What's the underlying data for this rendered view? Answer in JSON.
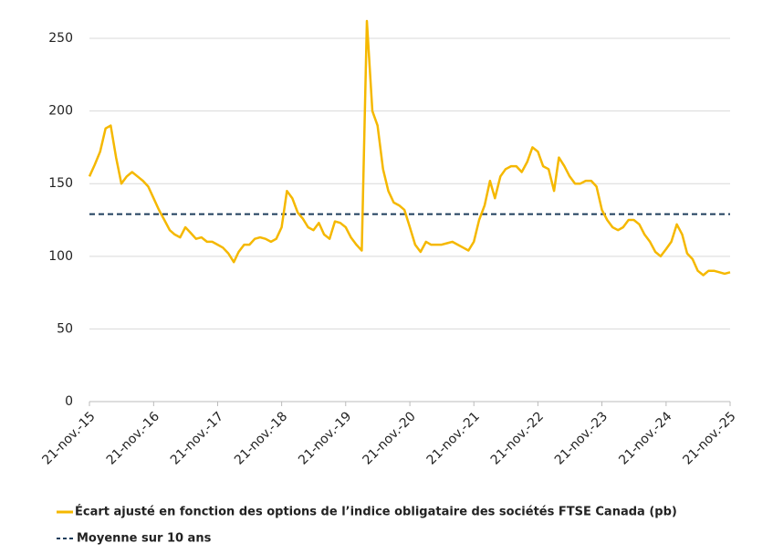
{
  "chart_data": {
    "type": "line",
    "x": [
      "2015-11-21",
      "2015-12-21",
      "2016-01-21",
      "2016-02-21",
      "2016-03-21",
      "2016-04-21",
      "2016-05-21",
      "2016-06-21",
      "2016-07-21",
      "2016-08-21",
      "2016-09-21",
      "2016-10-21",
      "2016-11-21",
      "2016-12-21",
      "2017-01-21",
      "2017-02-21",
      "2017-03-21",
      "2017-04-21",
      "2017-05-21",
      "2017-06-21",
      "2017-07-21",
      "2017-08-21",
      "2017-09-21",
      "2017-10-21",
      "2017-11-21",
      "2017-12-21",
      "2018-01-21",
      "2018-02-21",
      "2018-03-21",
      "2018-04-21",
      "2018-05-21",
      "2018-06-21",
      "2018-07-21",
      "2018-08-21",
      "2018-09-21",
      "2018-10-21",
      "2018-11-21",
      "2018-12-21",
      "2019-01-21",
      "2019-02-21",
      "2019-03-21",
      "2019-04-21",
      "2019-05-21",
      "2019-06-21",
      "2019-07-21",
      "2019-08-21",
      "2019-09-21",
      "2019-10-21",
      "2019-11-21",
      "2019-12-21",
      "2020-01-21",
      "2020-02-21",
      "2020-03-21",
      "2020-04-21",
      "2020-05-21",
      "2020-06-21",
      "2020-07-21",
      "2020-08-21",
      "2020-09-21",
      "2020-10-21",
      "2020-11-21",
      "2020-12-21",
      "2021-01-21",
      "2021-02-21",
      "2021-03-21",
      "2021-04-21",
      "2021-05-21",
      "2021-06-21",
      "2021-07-21",
      "2021-08-21",
      "2021-09-21",
      "2021-10-21",
      "2021-11-21",
      "2021-12-21",
      "2022-01-21",
      "2022-02-21",
      "2022-03-21",
      "2022-04-21",
      "2022-05-21",
      "2022-06-21",
      "2022-07-21",
      "2022-08-21",
      "2022-09-21",
      "2022-10-21",
      "2022-11-21",
      "2022-12-21",
      "2023-01-21",
      "2023-02-21",
      "2023-03-21",
      "2023-04-21",
      "2023-05-21",
      "2023-06-21",
      "2023-07-21",
      "2023-08-21",
      "2023-09-21",
      "2023-10-21",
      "2023-11-21",
      "2023-12-21",
      "2024-01-21",
      "2024-02-21",
      "2024-03-21",
      "2024-04-21",
      "2024-05-21",
      "2024-06-21",
      "2024-07-21",
      "2024-08-21",
      "2024-09-21",
      "2024-10-21",
      "2024-11-21",
      "2024-12-21",
      "2025-01-21",
      "2025-02-21",
      "2025-03-21",
      "2025-04-21",
      "2025-05-21",
      "2025-06-21",
      "2025-07-21",
      "2025-08-21",
      "2025-09-21",
      "2025-10-21",
      "2025-11-21"
    ],
    "series": [
      {
        "name": "Écart ajusté en fonction des options de l’indice obligataire des sociétés FTSE Canada (pb)",
        "color": "#f5b800",
        "values": [
          155,
          163,
          172,
          188,
          190,
          168,
          150,
          155,
          158,
          155,
          152,
          148,
          140,
          132,
          125,
          118,
          115,
          113,
          120,
          116,
          112,
          113,
          110,
          110,
          108,
          106,
          102,
          96,
          103,
          108,
          108,
          112,
          113,
          112,
          110,
          112,
          120,
          145,
          140,
          130,
          126,
          120,
          118,
          123,
          115,
          112,
          124,
          123,
          120,
          113,
          108,
          104,
          262,
          200,
          190,
          160,
          145,
          137,
          135,
          132,
          120,
          108,
          103,
          110,
          108,
          108,
          108,
          109,
          110,
          108,
          106,
          104,
          110,
          125,
          135,
          152,
          140,
          155,
          160,
          162,
          162,
          158,
          165,
          175,
          172,
          162,
          160,
          145,
          168,
          162,
          155,
          150,
          150,
          152,
          152,
          148,
          132,
          125,
          120,
          118,
          120,
          125,
          125,
          122,
          115,
          110,
          103,
          100,
          105,
          110,
          122,
          115,
          102,
          98,
          90,
          87,
          90,
          90,
          89,
          88,
          89
        ]
      }
    ],
    "reference_line": {
      "name": "Moyenne sur 10 ans",
      "value": 129,
      "color": "#1d3d5c",
      "dash": true
    },
    "ylim": [
      0,
      267
    ],
    "yticks": [
      0,
      50,
      100,
      150,
      200,
      250
    ],
    "xlim": [
      "2015-11-21",
      "2025-11-21"
    ],
    "xticks": [
      {
        "value": "2015-11-21",
        "label": "21-nov.-15"
      },
      {
        "value": "2016-11-21",
        "label": "21-nov.-16"
      },
      {
        "value": "2017-11-21",
        "label": "21-nov.-17"
      },
      {
        "value": "2018-11-21",
        "label": "21-nov.-18"
      },
      {
        "value": "2019-11-21",
        "label": "21-nov.-19"
      },
      {
        "value": "2020-11-21",
        "label": "21-nov.-20"
      },
      {
        "value": "2021-11-21",
        "label": "21-nov.-21"
      },
      {
        "value": "2022-11-21",
        "label": "21-nov.-22"
      },
      {
        "value": "2023-11-21",
        "label": "21-nov.-23"
      },
      {
        "value": "2024-11-21",
        "label": "21-nov.-24"
      },
      {
        "value": "2025-11-21",
        "label": "21-nov.-25"
      }
    ],
    "grid": true,
    "legend": "bottom"
  }
}
